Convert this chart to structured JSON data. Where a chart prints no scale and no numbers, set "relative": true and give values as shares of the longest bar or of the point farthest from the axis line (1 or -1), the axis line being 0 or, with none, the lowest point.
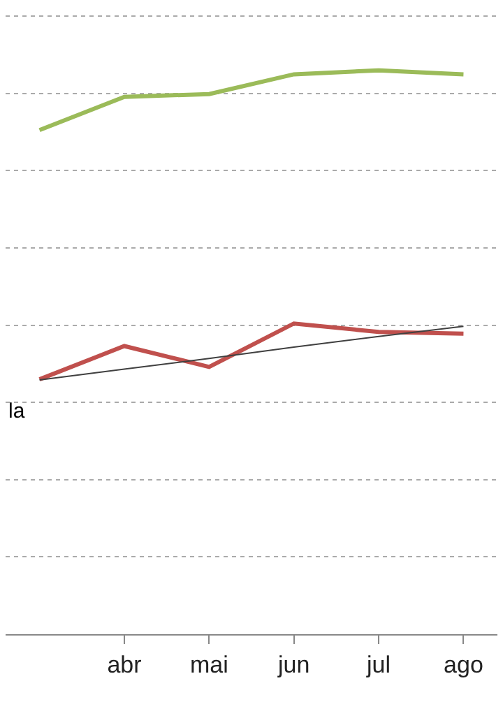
{
  "chart_data": {
    "type": "line",
    "relative": true,
    "grid": "y",
    "categories": [
      null,
      "abr",
      "mai",
      "jun",
      "jul",
      "ago"
    ],
    "series": [
      {
        "color": "#9bbb59",
        "values": [
          0.894,
          0.953,
          0.958,
          0.993,
          1,
          0.993
        ]
      },
      {
        "color": "#c0504d",
        "values": [
          0.452,
          0.511,
          0.474,
          0.551,
          0.536,
          0.533
        ]
      },
      {
        "color": "#404040",
        "values": [
          0.451,
          0.47,
          0.489,
          0.509,
          0.528,
          0.546
        ]
      }
    ],
    "annotations": [
      "la"
    ]
  }
}
